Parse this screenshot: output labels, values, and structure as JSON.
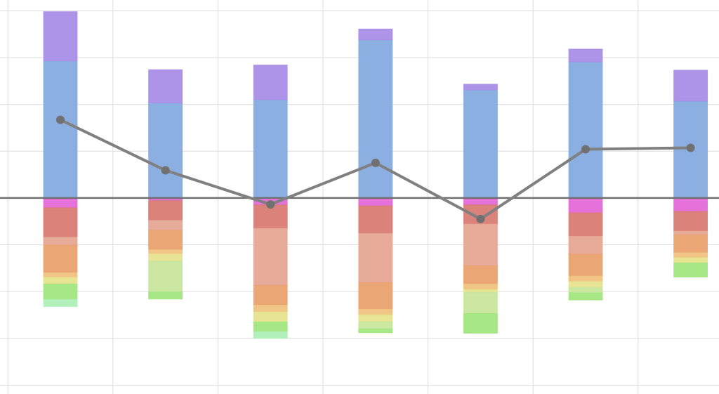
{
  "chart_data": {
    "type": "bar",
    "stacked": true,
    "grid": true,
    "x": [
      0,
      1,
      2,
      3,
      4,
      5,
      6
    ],
    "xlim": [
      -0.575,
      6.27
    ],
    "xticks": [
      -0.5,
      0.5,
      1.5,
      2.5,
      3.5,
      4.5,
      5.5
    ],
    "ylim": [
      -4.19,
      4.23
    ],
    "yticks": [
      -4,
      -3,
      -2,
      -1,
      0,
      1,
      2,
      3,
      4
    ],
    "series": [
      {
        "color": "#86abe0",
        "values": [
          2.93,
          2.03,
          2.1,
          3.38,
          2.31,
          2.91,
          2.07
        ]
      },
      {
        "color": "#a98ee8",
        "values": [
          1.05,
          0.71,
          0.74,
          0.23,
          0.12,
          0.27,
          0.66
        ]
      },
      {
        "color": "#e46ad8",
        "values": [
          -0.21,
          -0.06,
          -0.15,
          -0.17,
          -0.15,
          -0.32,
          -0.29
        ]
      },
      {
        "color": "#d97b74",
        "values": [
          -0.63,
          -0.42,
          -0.5,
          -0.59,
          -0.41,
          -0.5,
          -0.42
        ]
      },
      {
        "color": "#e6a694",
        "values": [
          -0.17,
          -0.21,
          -1.22,
          -1.05,
          -0.89,
          -0.38,
          -0.08
        ]
      },
      {
        "color": "#e9a26e",
        "values": [
          -0.59,
          -0.42,
          -0.42,
          -0.57,
          -0.39,
          -0.47,
          -0.38
        ]
      },
      {
        "color": "#f0c27e",
        "values": [
          -0.1,
          -0.09,
          -0.15,
          -0.12,
          -0.12,
          -0.12,
          -0.11
        ]
      },
      {
        "color": "#e6e48e",
        "values": [
          -0.14,
          -0.15,
          -0.21,
          -0.15,
          -0.06,
          -0.12,
          -0.11
        ]
      },
      {
        "color": "#c8e69c",
        "values": [
          0,
          -0.66,
          0,
          -0.15,
          -0.45,
          -0.12,
          0
        ]
      },
      {
        "color": "#a2e67e",
        "values": [
          -0.33,
          -0.15,
          -0.21,
          -0.08,
          -0.42,
          -0.15,
          -0.3
        ]
      },
      {
        "color": "#aef0b8",
        "values": [
          -0.15,
          0,
          -0.14,
          0,
          0,
          0,
          0
        ]
      }
    ],
    "line": {
      "color": "#808080",
      "values": [
        1.67,
        0.59,
        -0.14,
        0.75,
        -0.45,
        1.04,
        1.07
      ]
    }
  }
}
